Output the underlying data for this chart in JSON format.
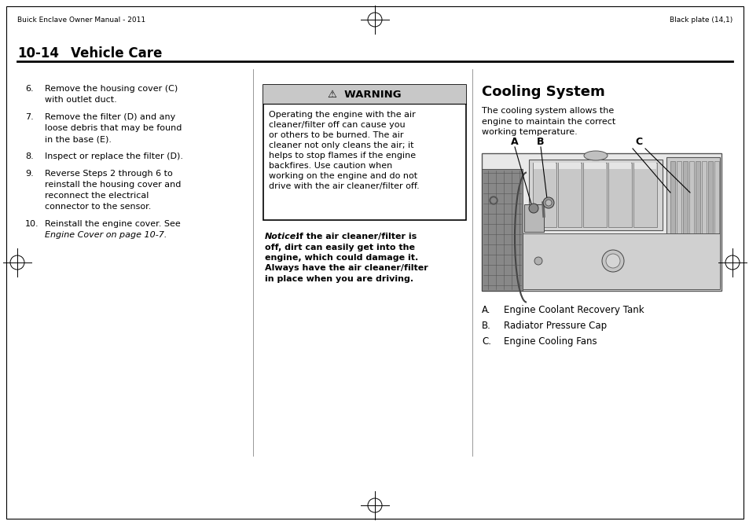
{
  "bg_color": "#ffffff",
  "header_left": "Buick Enclave Owner Manual - 2011",
  "header_right": "Black plate (14,1)",
  "section_title": "10-14",
  "section_title2": "Vehicle Care",
  "warning_title": "⚠  WARNING",
  "warning_body": "Operating the engine with the air\ncleaner/filter off can cause you\nor others to be burned. The air\ncleaner not only cleans the air; it\nhelps to stop flames if the engine\nbackfires. Use caution when\nworking on the engine and do not\ndrive with the air cleaner/filter off.",
  "notice_label": "Notice:",
  "notice_body": " If the air cleaner/filter is\noff, dirt can easily get into the\nengine, which could damage it.\nAlways have the air cleaner/filter\nin place when you are driving.",
  "cooling_title": "Cooling System",
  "cooling_body": "The cooling system allows the\nengine to maintain the correct\nworking temperature.",
  "legend_items": [
    [
      "A.",
      "Engine Coolant Recovery Tank"
    ],
    [
      "B.",
      "Radiator Pressure Cap"
    ],
    [
      "C.",
      "Engine Cooling Fans"
    ]
  ],
  "items": [
    [
      "6.",
      "Remove the housing cover (C)",
      "with outlet duct."
    ],
    [
      "7.",
      "Remove the filter (D) and any",
      "loose debris that may be found",
      "in the base (E)."
    ],
    [
      "8.",
      "Inspect or replace the filter (D)."
    ],
    [
      "9.",
      "Reverse Steps 2 through 6 to",
      "reinstall the housing cover and",
      "reconnect the electrical",
      "connector to the sensor."
    ],
    [
      "10.",
      "Reinstall the engine cover. See",
      "italic:Engine Cover on page 10-7."
    ]
  ],
  "warning_header_bg": "#c8c8c8",
  "text_color": "#000000",
  "div_color": "#888888"
}
